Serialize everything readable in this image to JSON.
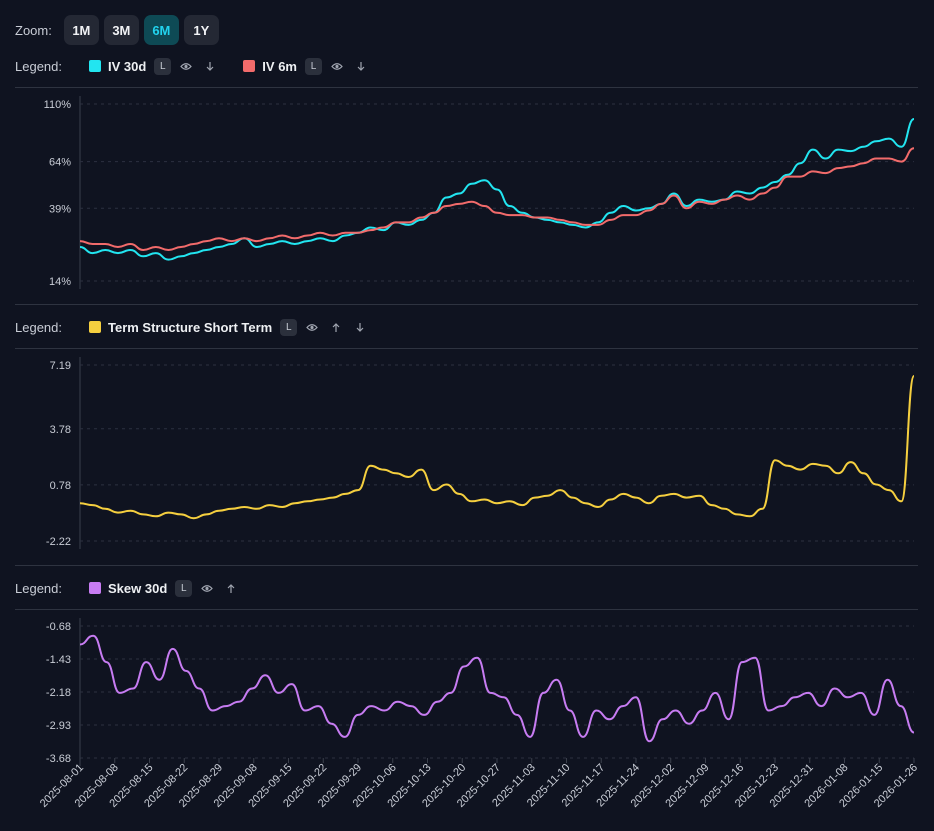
{
  "zoom": {
    "label": "Zoom:",
    "options": [
      {
        "label": "1M",
        "active": false
      },
      {
        "label": "3M",
        "active": false
      },
      {
        "label": "6M",
        "active": true
      },
      {
        "label": "1Y",
        "active": false
      }
    ]
  },
  "panel1": {
    "legend_label": "Legend:",
    "series": [
      {
        "name": "IV 30d",
        "color": "#22e5f0",
        "badge": "L",
        "icons": [
          "eye-icon",
          "arrow-down-icon"
        ]
      },
      {
        "name": "IV 6m",
        "color": "#f26b6b",
        "badge": "L",
        "icons": [
          "eye-icon",
          "arrow-down-icon"
        ]
      }
    ]
  },
  "panel2": {
    "legend_label": "Legend:",
    "series": [
      {
        "name": "Term Structure Short Term",
        "color": "#f5cf3f",
        "badge": "L",
        "icons": [
          "eye-icon",
          "arrow-up-icon",
          "arrow-down-icon"
        ]
      }
    ]
  },
  "panel3": {
    "legend_label": "Legend:",
    "series": [
      {
        "name": "Skew 30d",
        "color": "#c77cf2",
        "badge": "L",
        "icons": [
          "eye-icon",
          "arrow-up-icon"
        ]
      }
    ]
  },
  "chart_data": [
    {
      "type": "line",
      "title": "IV 30d / IV 6m",
      "yticks": [
        "110%",
        "64%",
        "39%",
        "14%"
      ],
      "ytick_values": [
        110,
        64,
        39,
        14
      ],
      "ylim": [
        14,
        110
      ],
      "series": [
        {
          "name": "IV 30d",
          "color": "#22e5f0",
          "values": [
            24,
            22,
            23,
            22,
            23,
            21,
            22,
            20,
            21,
            22,
            23,
            24,
            25,
            27,
            24,
            25,
            26,
            25,
            26,
            27,
            26,
            28,
            29,
            31,
            30,
            33,
            32,
            34,
            37,
            44,
            46,
            51,
            53,
            48,
            40,
            37,
            35,
            34,
            33,
            32,
            31,
            33,
            37,
            40,
            38,
            39,
            41,
            46,
            40,
            43,
            42,
            43,
            47,
            46,
            49,
            52,
            56,
            63,
            72,
            66,
            72,
            71,
            74,
            78,
            80,
            74,
            96
          ]
        },
        {
          "name": "IV 6m",
          "color": "#f26b6b",
          "values": [
            26,
            25,
            25,
            24,
            25,
            23,
            24,
            23,
            24,
            25,
            26,
            27,
            26,
            27,
            26,
            27,
            28,
            27,
            28,
            29,
            28,
            29,
            29,
            30,
            31,
            33,
            33,
            35,
            37,
            40,
            41,
            42,
            40,
            37,
            36,
            36,
            35,
            35,
            34,
            33,
            32,
            32,
            34,
            36,
            36,
            38,
            41,
            45,
            39,
            42,
            41,
            43,
            45,
            43,
            46,
            49,
            55,
            55,
            58,
            57,
            60,
            61,
            63,
            66,
            66,
            64,
            73
          ]
        }
      ]
    },
    {
      "type": "line",
      "title": "Term Structure Short Term",
      "yticks": [
        "7.19",
        "3.78",
        "0.78",
        "-2.22"
      ],
      "ytick_values": [
        7.19,
        3.78,
        0.78,
        -2.22
      ],
      "ylim": [
        -2.22,
        7.19
      ],
      "series": [
        {
          "name": "Term Structure Short Term",
          "color": "#f5cf3f",
          "values": [
            -0.2,
            -0.3,
            -0.5,
            -0.7,
            -0.6,
            -0.8,
            -0.9,
            -0.7,
            -0.8,
            -1.0,
            -0.8,
            -0.6,
            -0.5,
            -0.4,
            -0.5,
            -0.3,
            -0.4,
            -0.2,
            -0.1,
            0.0,
            0.1,
            0.3,
            0.5,
            1.8,
            1.6,
            1.4,
            1.2,
            1.6,
            0.5,
            0.8,
            0.3,
            -0.1,
            0.0,
            -0.2,
            -0.1,
            -0.3,
            0.1,
            0.2,
            0.5,
            0.1,
            -0.2,
            -0.4,
            0.0,
            0.3,
            0.1,
            -0.2,
            0.2,
            0.3,
            0.1,
            0.2,
            -0.3,
            -0.5,
            -0.8,
            -0.9,
            -0.5,
            2.1,
            1.8,
            1.6,
            1.9,
            1.8,
            1.4,
            2.0,
            1.4,
            0.8,
            0.5,
            -0.1,
            6.6
          ]
        }
      ]
    },
    {
      "type": "line",
      "title": "Skew 30d",
      "yticks": [
        "-0.68",
        "-1.43",
        "-2.18",
        "-2.93",
        "-3.68"
      ],
      "ytick_values": [
        -0.68,
        -1.43,
        -2.18,
        -2.93,
        -3.68
      ],
      "ylim": [
        -3.68,
        -0.68
      ],
      "series": [
        {
          "name": "Skew 30d",
          "color": "#c77cf2",
          "values": [
            -1.1,
            -0.9,
            -1.5,
            -2.2,
            -2.1,
            -1.5,
            -1.9,
            -1.2,
            -1.7,
            -2.1,
            -2.6,
            -2.5,
            -2.4,
            -2.1,
            -1.8,
            -2.2,
            -2.0,
            -2.6,
            -2.5,
            -2.9,
            -3.2,
            -2.7,
            -2.5,
            -2.6,
            -2.4,
            -2.5,
            -2.7,
            -2.4,
            -2.2,
            -1.6,
            -1.4,
            -2.2,
            -2.3,
            -2.7,
            -3.2,
            -2.2,
            -1.9,
            -2.6,
            -3.2,
            -2.6,
            -2.8,
            -2.5,
            -2.3,
            -3.3,
            -2.8,
            -2.6,
            -2.9,
            -2.6,
            -2.2,
            -2.8,
            -1.5,
            -1.4,
            -2.6,
            -2.5,
            -2.3,
            -2.2,
            -2.5,
            -2.1,
            -2.3,
            -2.2,
            -2.7,
            -1.9,
            -2.5,
            -3.1
          ]
        }
      ]
    },
    {
      "type": "axis",
      "x_ticks": [
        "2025-08-01",
        "2025-08-08",
        "2025-08-15",
        "2025-08-22",
        "2025-08-29",
        "2025-09-08",
        "2025-09-15",
        "2025-09-22",
        "2025-09-29",
        "2025-10-06",
        "2025-10-13",
        "2025-10-20",
        "2025-10-27",
        "2025-11-03",
        "2025-11-10",
        "2025-11-17",
        "2025-11-24",
        "2025-12-02",
        "2025-12-09",
        "2025-12-16",
        "2025-12-23",
        "2025-12-31",
        "2026-01-08",
        "2026-01-15",
        "2026-01-26"
      ]
    }
  ]
}
